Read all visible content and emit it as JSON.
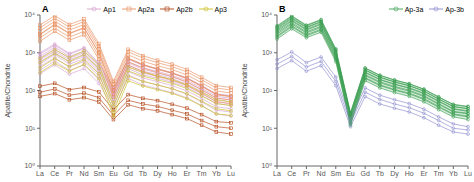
{
  "chart_data": [
    {
      "type": "line",
      "title": "A",
      "y_label": "Apatite/Chondrite",
      "log": "y",
      "legend": "upper right",
      "grid": false,
      "categories": [
        "La",
        "Ce",
        "Pr",
        "Nd",
        "Sm",
        "Eu",
        "Gd",
        "Tb",
        "Dy",
        "Ho",
        "Er",
        "Tm",
        "Yb",
        "Lu"
      ],
      "ylim": [
        1,
        10000
      ],
      "yticks": [
        {
          "value": 1,
          "label": "10⁰"
        },
        {
          "value": 10,
          "label": "10¹"
        },
        {
          "value": 100,
          "label": "10²"
        },
        {
          "value": 1000,
          "label": "10³"
        },
        {
          "value": 10000,
          "label": "10⁴"
        }
      ],
      "series": [
        {
          "name": "Ap1",
          "color": "#d4a0cc",
          "marker": "circle",
          "values": [
            [
              500,
              900,
              500,
              700,
              280,
              60,
              380,
              260,
              210,
              165,
              120,
              75,
              45,
              40
            ],
            [
              650,
              1100,
              650,
              900,
              360,
              75,
              470,
              325,
              265,
              205,
              150,
              95,
              57,
              50
            ],
            [
              800,
              1400,
              800,
              1100,
              450,
              95,
              570,
              400,
              320,
              250,
              185,
              115,
              70,
              62
            ],
            [
              350,
              600,
              340,
              480,
              195,
              42,
              260,
              175,
              140,
              110,
              80,
              50,
              30,
              27
            ],
            [
              1000,
              1700,
              960,
              1350,
              540,
              115,
              680,
              475,
              380,
              295,
              218,
              136,
              82,
              73
            ],
            [
              280,
              480,
              270,
              380,
              155,
              34,
              210,
              140,
              112,
              87,
              64,
              40,
              24,
              21
            ],
            [
              430,
              740,
              420,
              590,
              240,
              52,
              320,
              215,
              172,
              134,
              98,
              62,
              37,
              33
            ],
            [
              580,
              1000,
              570,
              800,
              320,
              68,
              430,
              290,
              232,
              180,
              133,
              83,
              50,
              44
            ],
            [
              730,
              1250,
              720,
              1010,
              404,
              86,
              540,
              365,
              292,
              227,
              167,
              105,
              63,
              56
            ],
            [
              920,
              1580,
              910,
              1280,
              512,
              108,
              683,
              461,
              369,
              287,
              211,
              132,
              80,
              71
            ]
          ]
        },
        {
          "name": "Ap2a",
          "color": "#e89060",
          "marker": "square",
          "values": [
            [
              3000,
              5500,
              3200,
              4500,
              1000,
              100,
              700,
              480,
              360,
              285,
              205,
              128,
              77,
              68
            ],
            [
              3800,
              6800,
              4000,
              5600,
              1250,
              125,
              880,
              600,
              452,
              357,
              258,
              161,
              97,
              86
            ],
            [
              4600,
              8200,
              4800,
              6700,
              1500,
              150,
              1060,
              720,
              544,
              429,
              310,
              194,
              116,
              103
            ],
            [
              2500,
              4500,
              2600,
              3700,
              820,
              82,
              580,
              396,
              297,
              234,
              169,
              105,
              63,
              56
            ],
            [
              5400,
              9600,
              5600,
              7800,
              1750,
              175,
              1230,
              838,
              632,
              499,
              361,
              225,
              135,
              120
            ],
            [
              2000,
              3700,
              2150,
              3000,
              670,
              67,
              470,
              320,
              240,
              190,
              137,
              85,
              51,
              45
            ],
            [
              3100,
              5700,
              3300,
              4650,
              1030,
              103,
              724,
              494,
              371,
              293,
              212,
              132,
              79,
              70
            ]
          ]
        },
        {
          "name": "Ap2b",
          "color": "#b04010",
          "marker": "square",
          "values": [
            [
              90,
              110,
              75,
              85,
              65,
              22,
              55,
              44,
              38,
              30,
              24,
              16,
              11,
              10
            ],
            [
              130,
              155,
              105,
              120,
              92,
              31,
              78,
              62,
              54,
              43,
              34,
              23,
              15,
              14
            ],
            [
              70,
              83,
              57,
              65,
              50,
              17,
              42,
              33,
              29,
              23,
              18,
              12,
              8,
              7
            ]
          ]
        },
        {
          "name": "Ap3",
          "color": "#c8c020",
          "marker": "circle",
          "values": [
            [
              400,
              700,
              430,
              650,
              280,
              28,
              240,
              175,
              140,
              112,
              82,
              52,
              33,
              29
            ],
            [
              550,
              950,
              590,
              890,
              385,
              38,
              330,
              240,
              192,
              154,
              113,
              71,
              45,
              40
            ],
            [
              700,
              1200,
              745,
              1120,
              485,
              48,
              416,
              303,
              242,
              194,
              142,
              90,
              57,
              50
            ],
            [
              300,
              530,
              325,
              490,
              210,
              21,
              180,
              131,
              105,
              84,
              61,
              39,
              24,
              22
            ]
          ]
        }
      ]
    },
    {
      "type": "line",
      "title": "B",
      "y_label": "Apatite/Chondrite",
      "log": "y",
      "legend": "upper right",
      "grid": false,
      "categories": [
        "La",
        "Ce",
        "Pr",
        "Nd",
        "Sm",
        "Eu",
        "Gd",
        "Tb",
        "Dy",
        "Ho",
        "Er",
        "Tm",
        "Yb",
        "Lu"
      ],
      "ylim": [
        1,
        10000
      ],
      "yticks": [
        {
          "value": 1,
          "label": "10⁰"
        },
        {
          "value": 10,
          "label": "10¹"
        },
        {
          "value": 100,
          "label": "10²"
        },
        {
          "value": 1000,
          "label": "10³"
        },
        {
          "value": 10000,
          "label": "10⁴"
        }
      ],
      "series": [
        {
          "name": "Ap-3a",
          "color": "#3a9e50",
          "marker": "circle",
          "envelope_lower": [
            2300,
            4300,
            2500,
            3500,
            580,
            12,
            182,
            117,
            88,
            70,
            50,
            31,
            20,
            17
          ],
          "envelope_upper": [
            5200,
            9500,
            5400,
            7600,
            1260,
            26,
            396,
            254,
            191,
            152,
            109,
            68,
            43,
            38
          ],
          "values": [
            [
              2800,
              5200,
              3000,
              4200,
              700,
              14,
              220,
              142,
              107,
              85,
              61,
              38,
              24,
              21
            ],
            [
              3400,
              6200,
              3600,
              5000,
              840,
              17,
              264,
              170,
              128,
              102,
              73,
              45,
              28,
              25
            ],
            [
              4000,
              7300,
              4200,
              5900,
              980,
              20,
              308,
              198,
              149,
              118,
              85,
              53,
              33,
              29
            ],
            [
              4600,
              8400,
              4800,
              6700,
              1120,
              23,
              352,
              226,
              170,
              135,
              97,
              60,
              38,
              33
            ],
            [
              5200,
              9500,
              5400,
              7600,
              1260,
              26,
              396,
              254,
              191,
              152,
              109,
              68,
              43,
              38
            ],
            [
              2300,
              4300,
              2500,
              3500,
              580,
              12,
              182,
              117,
              88,
              70,
              50,
              31,
              20,
              17
            ],
            [
              3100,
              5800,
              3350,
              4700,
              790,
              16,
              250,
              161,
              121,
              96,
              69,
              43,
              27,
              24
            ],
            [
              3700,
              6900,
              4000,
              5600,
              940,
              19,
              298,
              191,
              144,
              114,
              82,
              51,
              32,
              28
            ],
            [
              4300,
              8000,
              4600,
              6500,
              1090,
              22,
              346,
              222,
              167,
              133,
              95,
              59,
              37,
              33
            ],
            [
              4900,
              9100,
              5200,
              7300,
              1235,
              25,
              390,
              250,
              188,
              149,
              107,
              67,
              42,
              37
            ],
            [
              2600,
              4900,
              2820,
              3960,
              665,
              13,
              210,
              135,
              102,
              81,
              58,
              36,
              23,
              20
            ]
          ]
        },
        {
          "name": "Ap-3b",
          "color": "#8888cc",
          "marker": "circle",
          "values": [
            [
              500,
              800,
              420,
              590,
              175,
              14,
              90,
              58,
              44,
              35,
              25,
              16,
              10,
              9
            ],
            [
              650,
              1050,
              550,
              770,
              228,
              18,
              117,
              75,
              57,
              45,
              32,
              20,
              13,
              11
            ],
            [
              380,
              620,
              325,
              455,
              135,
              11,
              69,
              44,
              34,
              27,
              19,
              12,
              8,
              7
            ]
          ]
        }
      ]
    }
  ]
}
